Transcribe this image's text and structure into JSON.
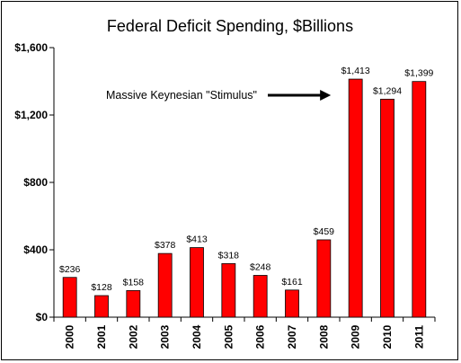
{
  "chart_data": {
    "type": "bar",
    "title": "Federal Deficit Spending, $Billions",
    "xlabel": "",
    "ylabel": "",
    "categories": [
      "2000",
      "2001",
      "2002",
      "2003",
      "2004",
      "2005",
      "2006",
      "2007",
      "2008",
      "2009",
      "2010",
      "2011"
    ],
    "values": [
      236,
      128,
      158,
      378,
      413,
      318,
      248,
      161,
      459,
      1413,
      1294,
      1399
    ],
    "data_labels": [
      "$236",
      "$128",
      "$158",
      "$378",
      "$413",
      "$318",
      "$248",
      "$161",
      "$459",
      "$1,413",
      "$1,294",
      "$1,399"
    ],
    "ylim": [
      0,
      1600
    ],
    "yticks": [
      0,
      400,
      800,
      1200,
      1600
    ],
    "ytick_labels": [
      "$0",
      "$400",
      "$800",
      "$1,200",
      "$1,600"
    ],
    "bar_color": "#ff0000",
    "bar_edge_color": "#000000",
    "grid": false,
    "annotation": {
      "text": "Massive Keynesian \"Stimulus\"",
      "points_to": "2009"
    }
  }
}
